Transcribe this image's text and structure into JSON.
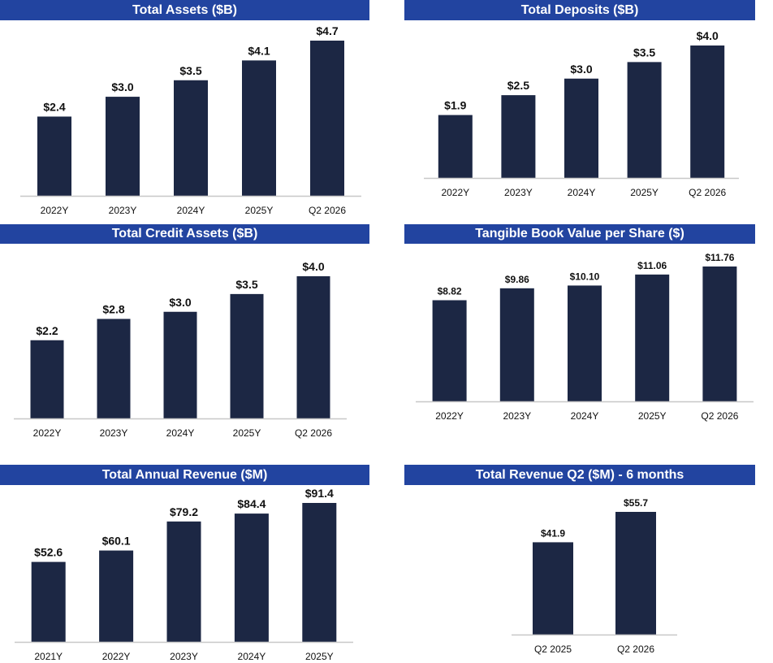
{
  "colors": {
    "title_bg": "#2244a0",
    "title_text": "#ffffff",
    "bar": "#1c2744",
    "axis": "#c8c8c8"
  },
  "chart_data": [
    {
      "id": "assets",
      "type": "bar",
      "title": "Total Assets ($B)",
      "categories": [
        "2022Y",
        "2023Y",
        "2024Y",
        "2025Y",
        "Q2 2026"
      ],
      "values": [
        2.4,
        3.0,
        3.5,
        4.1,
        4.7
      ],
      "labels": [
        "$2.4",
        "$3.0",
        "$3.5",
        "$4.1",
        "$4.7"
      ],
      "ylim": [
        0,
        5
      ]
    },
    {
      "id": "deposits",
      "type": "bar",
      "title": "Total Deposits ($B)",
      "categories": [
        "2022Y",
        "2023Y",
        "2024Y",
        "2025Y",
        "Q2 2026"
      ],
      "values": [
        1.9,
        2.5,
        3.0,
        3.5,
        4.0
      ],
      "labels": [
        "$1.9",
        "$2.5",
        "$3.0",
        "$3.5",
        "$4.0"
      ],
      "ylim": [
        0,
        4.3
      ]
    },
    {
      "id": "credit",
      "type": "bar",
      "title": "Total Credit Assets ($B)",
      "categories": [
        "2022Y",
        "2023Y",
        "2024Y",
        "2025Y",
        "Q2 2026"
      ],
      "values": [
        2.2,
        2.8,
        3.0,
        3.5,
        4.0
      ],
      "labels": [
        "$2.2",
        "$2.8",
        "$3.0",
        "$3.5",
        "$4.0"
      ],
      "ylim": [
        0,
        4.5
      ]
    },
    {
      "id": "tbv",
      "type": "bar",
      "title": "Tangible Book Value per Share ($)",
      "categories": [
        "2022Y",
        "2023Y",
        "2024Y",
        "2025Y",
        "Q2 2026"
      ],
      "values": [
        8.82,
        9.86,
        10.1,
        11.06,
        11.76
      ],
      "labels": [
        "$8.82",
        "$9.86",
        "$10.10",
        "$11.06",
        "$11.76"
      ],
      "ylim": [
        0,
        12.5
      ]
    },
    {
      "id": "revenue",
      "type": "bar",
      "title": "Total Annual Revenue ($M)",
      "categories": [
        "2021Y",
        "2022Y",
        "2023Y",
        "2024Y",
        "2025Y"
      ],
      "values": [
        52.6,
        60.1,
        79.2,
        84.4,
        91.4
      ],
      "labels": [
        "$52.6",
        "$60.1",
        "$79.2",
        "$84.4",
        "$91.4"
      ],
      "ylim": [
        0,
        100
      ]
    },
    {
      "id": "q2rev",
      "type": "bar",
      "title": "Total Revenue Q2 ($M) - 6 months",
      "categories": [
        "Q2 2025",
        "Q2 2026"
      ],
      "values": [
        41.9,
        55.7
      ],
      "labels": [
        "$41.9",
        "$55.7"
      ],
      "ylim": [
        0,
        60
      ]
    }
  ]
}
